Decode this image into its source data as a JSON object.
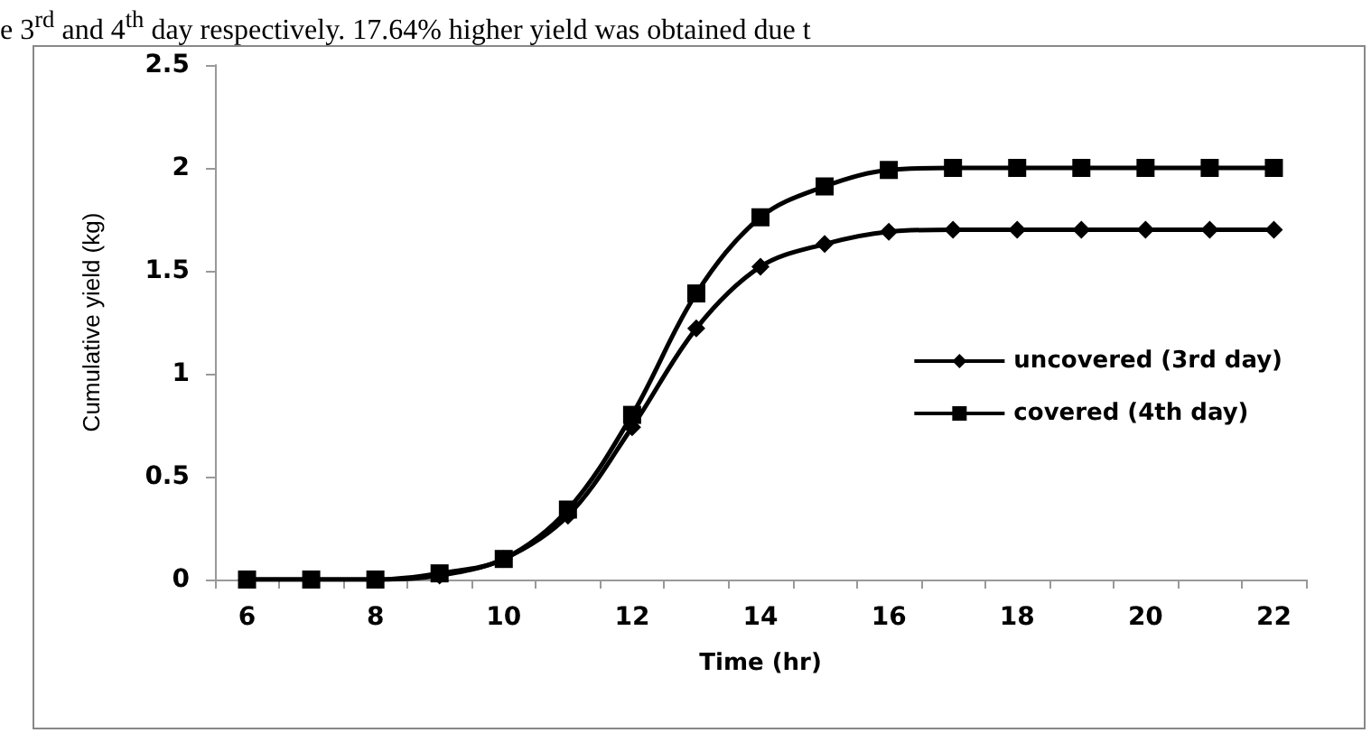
{
  "chart_data": {
    "type": "line",
    "xlabel": "Time (hr)",
    "ylabel": "Cumulative yield (kg)",
    "annotations": [
      "e 3$^{rd}$ and 4$^{th}$ day respectively. 17.64% higher yield was obtained due t"
    ],
    "categories": [
      "6",
      null,
      "8",
      null,
      "10",
      null,
      "12",
      null,
      "14",
      null,
      "16",
      null,
      "18",
      null,
      "20",
      null,
      "22"
    ],
    "series": [
      {
        "name": "uncovered (3rd day)",
        "color": "#000000",
        "marker": "diamond",
        "values": [
          0,
          0,
          0,
          0.02,
          0.1,
          0.31,
          0.74,
          1.22,
          1.52,
          1.63,
          1.69,
          1.7,
          1.7,
          1.7,
          1.7,
          1.7,
          1.7
        ]
      },
      {
        "name": "covered (4th day)",
        "color": "#000000",
        "marker": "square",
        "values": [
          0,
          0,
          0,
          0.03,
          0.1,
          0.34,
          0.8,
          1.39,
          1.76,
          1.91,
          1.99,
          2,
          2,
          2,
          2,
          2,
          2
        ]
      }
    ],
    "ylim": [
      0,
      2.5
    ],
    "yticks": [
      0,
      0.5,
      1,
      1.5,
      2,
      2.5
    ],
    "grid": false,
    "legend": "right",
    "line_style": "solid"
  }
}
